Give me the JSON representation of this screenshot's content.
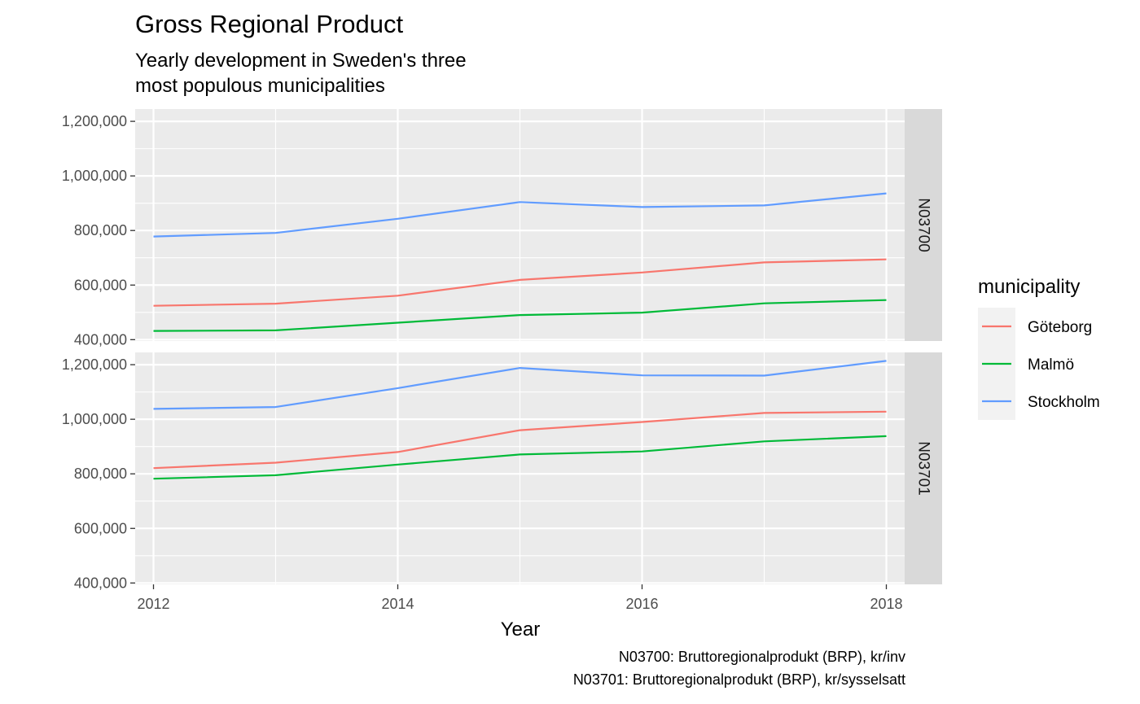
{
  "chart_data": {
    "type": "line",
    "title": "Gross Regional Product",
    "subtitle_lines": [
      "Yearly development in Sweden's three",
      "most populous municipalities"
    ],
    "xlabel": "Year",
    "ylabel": "",
    "x": [
      2012,
      2013,
      2014,
      2015,
      2016,
      2017,
      2018
    ],
    "xticks": [
      2012,
      2014,
      2016,
      2018
    ],
    "xtick_labels": [
      "2012",
      "2014",
      "2016",
      "2018"
    ],
    "xlim": [
      2011.85,
      2018.15
    ],
    "ylim": [
      395000,
      1245000
    ],
    "yticks": [
      400000,
      600000,
      800000,
      1000000,
      1200000
    ],
    "ytick_labels": [
      "400,000",
      "600,000",
      "800,000",
      "1,000,000",
      "1,200,000"
    ],
    "grid": true,
    "legend": {
      "title": "municipality",
      "position": "right",
      "entries": [
        "Göteborg",
        "Malmö",
        "Stockholm"
      ]
    },
    "colors": {
      "Göteborg": "#F8766D",
      "Malmö": "#00BA38",
      "Stockholm": "#619CFF"
    },
    "facets": [
      {
        "strip": "N03700",
        "series": [
          {
            "name": "Göteborg",
            "values": [
              524000,
              532000,
              561000,
              619000,
              646000,
              683000,
              694000
            ]
          },
          {
            "name": "Malmö",
            "values": [
              432000,
              434000,
              462000,
              490000,
              499000,
              533000,
              545000
            ]
          },
          {
            "name": "Stockholm",
            "values": [
              778000,
              791000,
              843000,
              904000,
              886000,
              892000,
              936000
            ]
          }
        ]
      },
      {
        "strip": "N03701",
        "series": [
          {
            "name": "Göteborg",
            "values": [
              821000,
              841000,
              880000,
              960000,
              990000,
              1023000,
              1028000
            ]
          },
          {
            "name": "Malmö",
            "values": [
              782000,
              795000,
              834000,
              871000,
              882000,
              919000,
              938000
            ]
          },
          {
            "name": "Stockholm",
            "values": [
              1038000,
              1045000,
              1114000,
              1188000,
              1161000,
              1160000,
              1214000
            ]
          }
        ]
      }
    ],
    "caption_lines": [
      "N03700: Bruttoregionalprodukt (BRP), kr/inv",
      "N03701: Bruttoregionalprodukt (BRP), kr/sysselsatt"
    ]
  }
}
